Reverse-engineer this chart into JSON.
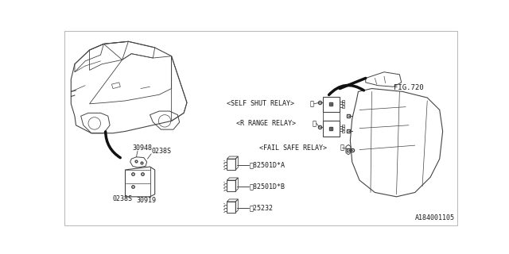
{
  "bg_color": "#ffffff",
  "border_color": "#bbbbbb",
  "fig_width": 6.4,
  "fig_height": 3.2,
  "dpi": 100,
  "diagram_id": "A184001105",
  "fig_ref": "FIG.720",
  "labels": {
    "self_shut_relay": "<SELF SHUT RELAY>",
    "r_range_relay": "<R RANGE RELAY>",
    "fail_safe_relay": "<FAIL SAFE RELAY>",
    "part1_num": "82501D*A",
    "part2_num": "82501D*B",
    "part3_num": "25232",
    "label_30948": "30948",
    "label_0238S_1": "0238S",
    "label_0238S_2": "0238S",
    "label_30919": "30919"
  },
  "circle1": "①",
  "circle2": "②",
  "circle3": "③",
  "text_color": "#1a1a1a",
  "line_color": "#444444",
  "font_size": 6.0
}
